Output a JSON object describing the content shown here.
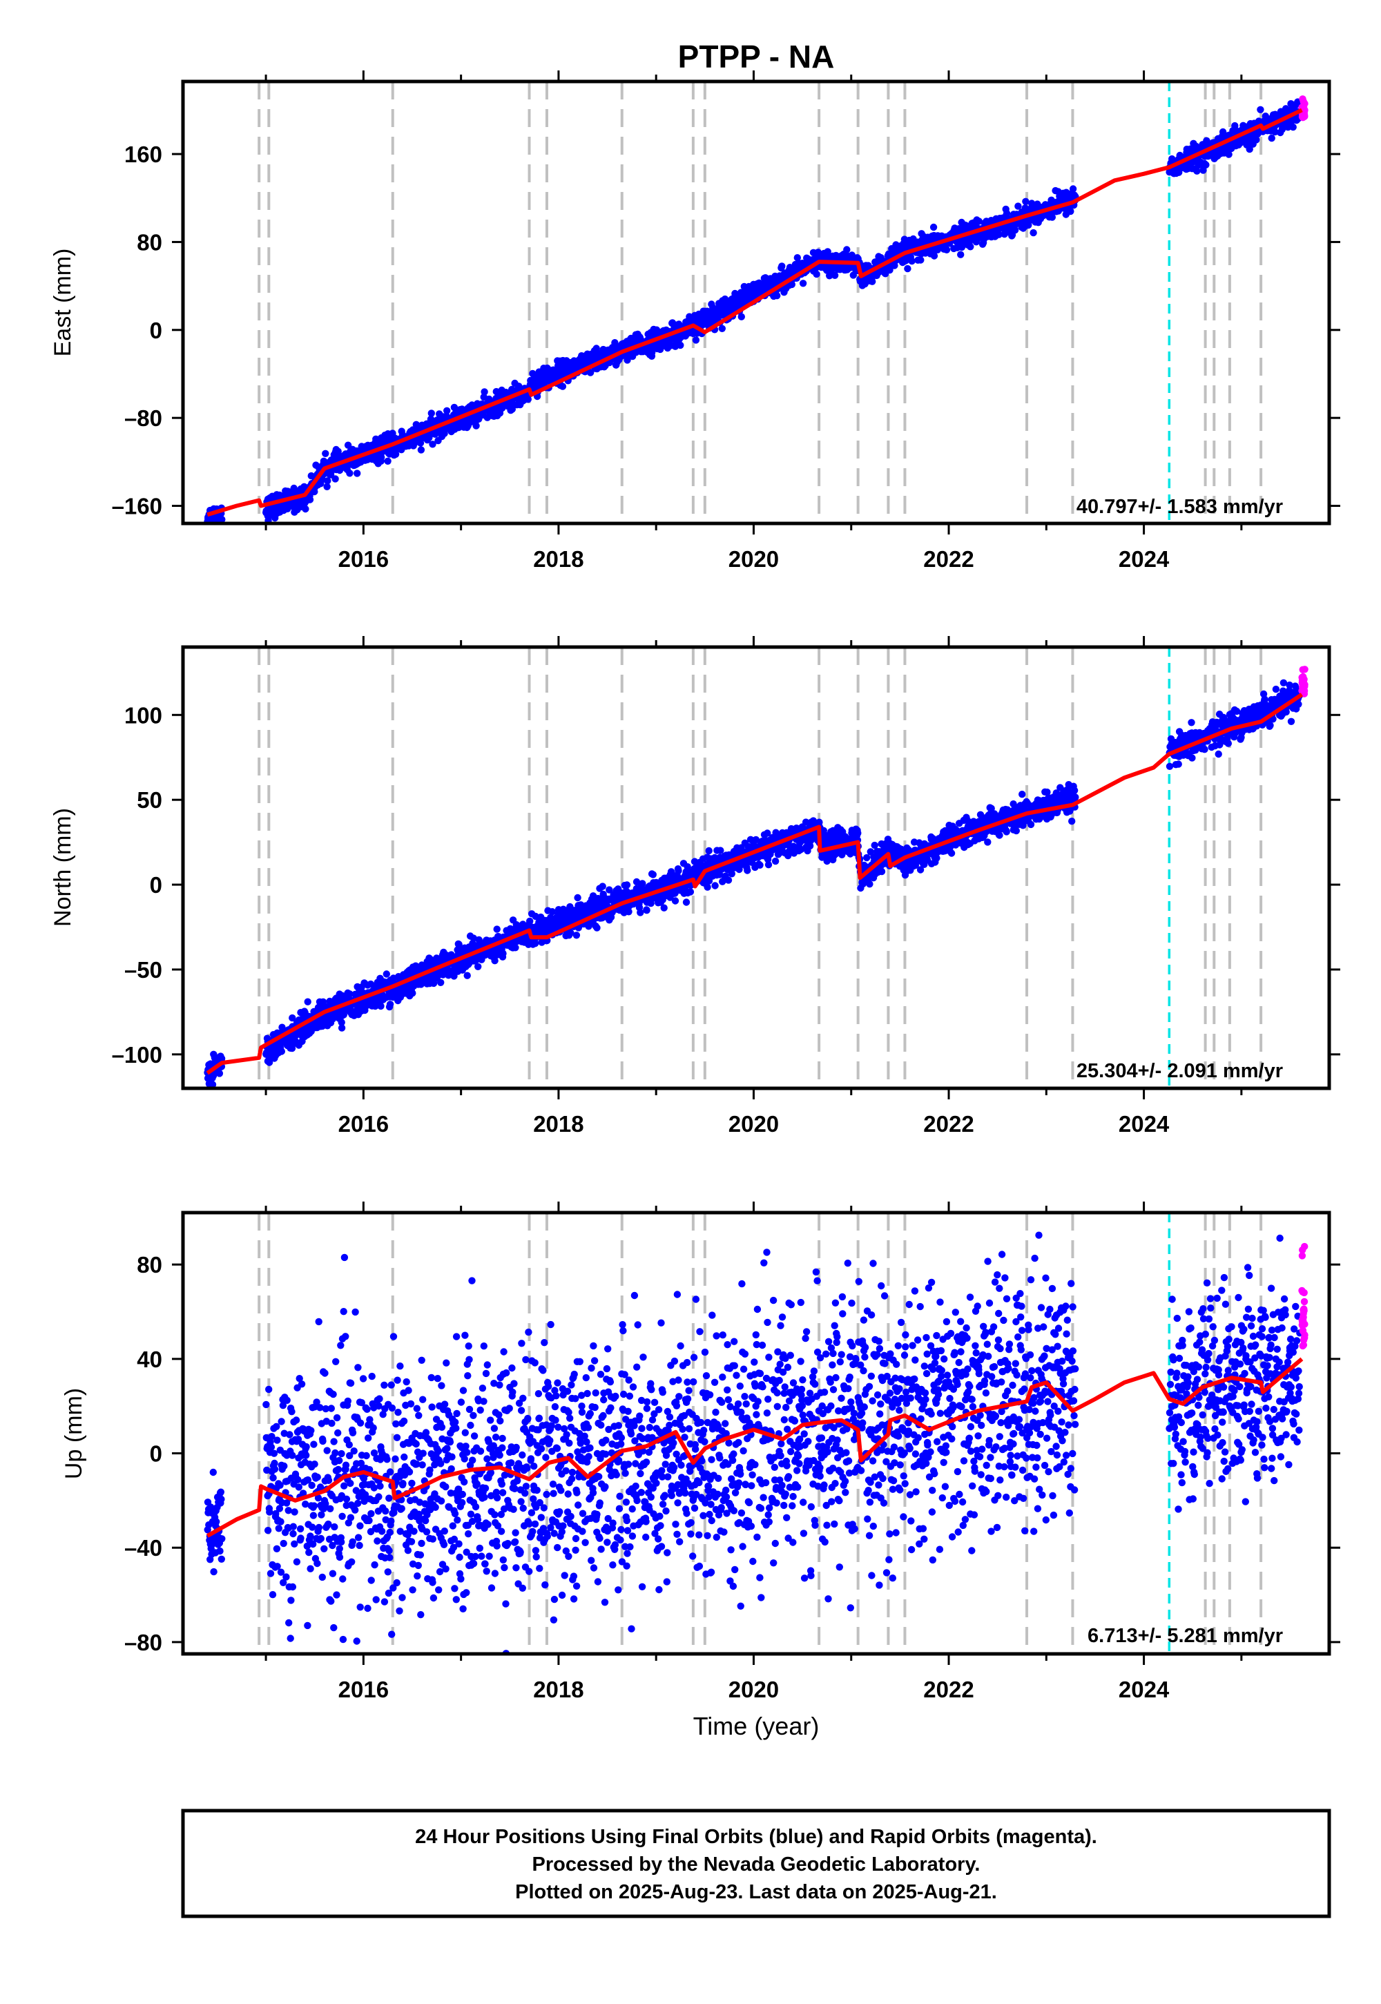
{
  "title": "PTPP - NA",
  "x_axis_label": "Time (year)",
  "x_ticks": [
    "2016",
    "2018",
    "2020",
    "2022",
    "2024"
  ],
  "footer_lines": [
    "24 Hour Positions Using Final Orbits (blue) and Rapid Orbits (magenta).",
    "Processed by the Nevada Geodetic Laboratory.",
    "Plotted on 2025-Aug-23. Last data on 2025-Aug-21."
  ],
  "colors": {
    "final_orbits": "#0000ff",
    "rapid_orbits": "#ff00ff",
    "model": "#ff0000",
    "equipment_change": "#c0c0c0",
    "earthquake": "#00e5e5"
  },
  "chart_data": [
    {
      "type": "scatter",
      "panel": "east",
      "ylabel": "East (mm)",
      "xlim": [
        2014.15,
        2025.9
      ],
      "ylim": [
        -176,
        226
      ],
      "yticks": [
        "160",
        "80",
        "0",
        "–80",
        "–160"
      ],
      "rate_text": "40.797+/- 1.583 mm/yr",
      "vlines_gray": [
        2014.93,
        2015.03,
        2016.3,
        2017.7,
        2017.88,
        2018.65,
        2019.38,
        2019.5,
        2020.67,
        2021.07,
        2021.38,
        2021.55,
        2022.8,
        2023.27,
        2024.63,
        2024.72,
        2024.88,
        2025.2
      ],
      "vlines_cyan": [
        2024.26
      ],
      "series": [
        {
          "color_key": "final_orbits",
          "segments": [
            {
              "from": 2014.4,
              "to": 2014.55,
              "x": [
                2014.4,
                2014.55
              ],
              "y": [
                -170,
                -165
              ],
              "scatter": 4
            },
            {
              "from": 2015.0,
              "to": 2023.3,
              "x": [
                2015.0,
                2015.4,
                2015.6,
                2016.3,
                2017.7,
                2017.72,
                2018.65,
                2019.38,
                2019.5,
                2020.67,
                2021.07,
                2021.1,
                2021.55,
                2022.8,
                2023.3
              ],
              "y": [
                -162,
                -152,
                -126,
                -105,
                -56,
                -48,
                -20,
                2,
                10,
                62,
                60,
                47,
                70,
                103,
                120
              ],
              "scatter": 5
            },
            {
              "from": 2024.26,
              "to": 2025.6,
              "x": [
                2024.26,
                2025.6
              ],
              "y": [
                147,
                198
              ],
              "scatter": 5
            }
          ]
        },
        {
          "color_key": "rapid_orbits",
          "segments": [
            {
              "from": 2025.62,
              "to": 2025.65,
              "x": [
                2025.62,
                2025.65
              ],
              "y": [
                193,
                212
              ],
              "scatter": 8
            }
          ]
        }
      ],
      "model": {
        "x": [
          2014.4,
          2014.7,
          2014.93,
          2014.95,
          2015.4,
          2015.6,
          2016.3,
          2017.7,
          2017.72,
          2018.65,
          2019.38,
          2019.5,
          2020.67,
          2021.07,
          2021.1,
          2021.55,
          2022.8,
          2023.27,
          2023.7,
          2024.0,
          2024.26,
          2025.2,
          2025.22,
          2025.62
        ],
        "y": [
          -168,
          -160,
          -155,
          -160,
          -150,
          -126,
          -104,
          -54,
          -59,
          -20,
          4,
          -2,
          62,
          61,
          49,
          70,
          104,
          116,
          136,
          142,
          148,
          186,
          183,
          200
        ]
      }
    },
    {
      "type": "scatter",
      "panel": "north",
      "ylabel": "North (mm)",
      "xlim": [
        2014.15,
        2025.9
      ],
      "ylim": [
        -120,
        140
      ],
      "yticks": [
        "100",
        "50",
        "0",
        "–50",
        "–100"
      ],
      "rate_text": "25.304+/- 2.091 mm/yr",
      "vlines_gray": [
        2014.93,
        2015.03,
        2016.3,
        2017.7,
        2017.88,
        2018.65,
        2019.38,
        2019.5,
        2020.67,
        2021.07,
        2021.38,
        2021.55,
        2022.8,
        2023.27,
        2024.63,
        2024.72,
        2024.88,
        2025.2
      ],
      "vlines_cyan": [
        2024.26
      ],
      "series": [
        {
          "color_key": "final_orbits",
          "segments": [
            {
              "from": 2014.4,
              "to": 2014.55,
              "x": [
                2014.4,
                2014.55
              ],
              "y": [
                -112,
                -103
              ],
              "scatter": 4
            },
            {
              "from": 2015.0,
              "to": 2023.3,
              "x": [
                2015.0,
                2015.6,
                2016.3,
                2016.8,
                2017.7,
                2018.65,
                2019.38,
                2019.5,
                2020.67,
                2020.7,
                2021.07,
                2021.1,
                2021.38,
                2021.55,
                2022.3,
                2022.8,
                2023.3
              ],
              "y": [
                -98,
                -76,
                -61,
                -48,
                -28,
                -10,
                3,
                8,
                32,
                22,
                26,
                5,
                20,
                14,
                33,
                42,
                50
              ],
              "scatter": 4
            },
            {
              "from": 2024.26,
              "to": 2025.6,
              "x": [
                2024.26,
                2025.6
              ],
              "y": [
                77,
                112
              ],
              "scatter": 4
            }
          ]
        },
        {
          "color_key": "rapid_orbits",
          "segments": [
            {
              "from": 2025.62,
              "to": 2025.65,
              "x": [
                2025.62,
                2025.65
              ],
              "y": [
                112,
                132
              ],
              "scatter": 9
            }
          ]
        }
      ],
      "model": {
        "x": [
          2014.4,
          2014.55,
          2014.93,
          2014.95,
          2015.6,
          2016.3,
          2016.8,
          2017.7,
          2017.72,
          2017.88,
          2018.65,
          2019.38,
          2019.4,
          2019.5,
          2020.67,
          2020.68,
          2021.07,
          2021.09,
          2021.38,
          2021.4,
          2021.55,
          2022.3,
          2022.8,
          2023.27,
          2023.8,
          2024.1,
          2024.26,
          2024.9,
          2025.2,
          2025.62
        ],
        "y": [
          -111,
          -105,
          -102,
          -96,
          -75,
          -60,
          -48,
          -27,
          -31,
          -31,
          -11,
          3,
          -1,
          8,
          34,
          20,
          25,
          4,
          18,
          11,
          16,
          32,
          42,
          47,
          63,
          69,
          77,
          92,
          96,
          112
        ]
      }
    },
    {
      "type": "scatter",
      "panel": "up",
      "ylabel": "Up (mm)",
      "xlim": [
        2014.15,
        2025.9
      ],
      "ylim": [
        -85,
        102
      ],
      "yticks": [
        "80",
        "40",
        "0",
        "–40",
        "–80"
      ],
      "rate_text": "6.713+/- 5.281 mm/yr",
      "vlines_gray": [
        2014.93,
        2015.03,
        2016.3,
        2017.7,
        2017.88,
        2018.65,
        2019.38,
        2019.5,
        2020.67,
        2021.07,
        2021.38,
        2021.55,
        2022.8,
        2023.27,
        2024.63,
        2024.72,
        2024.88,
        2025.2
      ],
      "vlines_cyan": [
        2024.26
      ],
      "series": [
        {
          "color_key": "final_orbits",
          "segments": [
            {
              "from": 2014.4,
              "to": 2014.55,
              "x": [
                2014.4,
                2014.55
              ],
              "y": [
                -34,
                -32
              ],
              "scatter": 10
            },
            {
              "from": 2015.0,
              "to": 2023.3,
              "x": [
                2015.0,
                2016.3,
                2017.7,
                2019.0,
                2020.67,
                2021.55,
                2022.8,
                2023.3
              ],
              "y": [
                -12,
                -13,
                -7,
                -2,
                9,
                12,
                25,
                28
              ],
              "scatter": 25
            },
            {
              "from": 2024.26,
              "to": 2025.6,
              "x": [
                2024.26,
                2025.6
              ],
              "y": [
                22,
                32
              ],
              "scatter": 20
            }
          ]
        },
        {
          "color_key": "rapid_orbits",
          "segments": [
            {
              "from": 2025.62,
              "to": 2025.65,
              "x": [
                2025.62,
                2025.65
              ],
              "y": [
                45,
                90
              ],
              "scatter": 12
            }
          ]
        }
      ],
      "model": {
        "x": [
          2014.4,
          2014.7,
          2014.93,
          2014.95,
          2015.0,
          2015.3,
          2015.6,
          2015.8,
          2016.0,
          2016.3,
          2016.32,
          2016.6,
          2016.8,
          2017.1,
          2017.4,
          2017.7,
          2017.9,
          2018.1,
          2018.3,
          2018.65,
          2018.9,
          2019.2,
          2019.38,
          2019.5,
          2019.7,
          2020.0,
          2020.3,
          2020.5,
          2020.67,
          2020.9,
          2021.07,
          2021.1,
          2021.38,
          2021.4,
          2021.55,
          2021.8,
          2022.1,
          2022.3,
          2022.8,
          2022.85,
          2023.0,
          2023.27,
          2023.5,
          2023.8,
          2024.1,
          2024.26,
          2024.4,
          2024.6,
          2024.9,
          2025.2,
          2025.22,
          2025.62
        ],
        "y": [
          -35,
          -28,
          -24,
          -14,
          -15,
          -20,
          -16,
          -10,
          -8,
          -12,
          -19,
          -14,
          -10,
          -7,
          -6,
          -11,
          -4,
          -2,
          -10,
          1,
          3,
          9,
          -4,
          2,
          6,
          10,
          6,
          12,
          13,
          14,
          10,
          -3,
          8,
          14,
          16,
          10,
          15,
          18,
          22,
          28,
          30,
          18,
          23,
          30,
          34,
          23,
          21,
          28,
          32,
          30,
          26,
          40
        ]
      }
    }
  ]
}
